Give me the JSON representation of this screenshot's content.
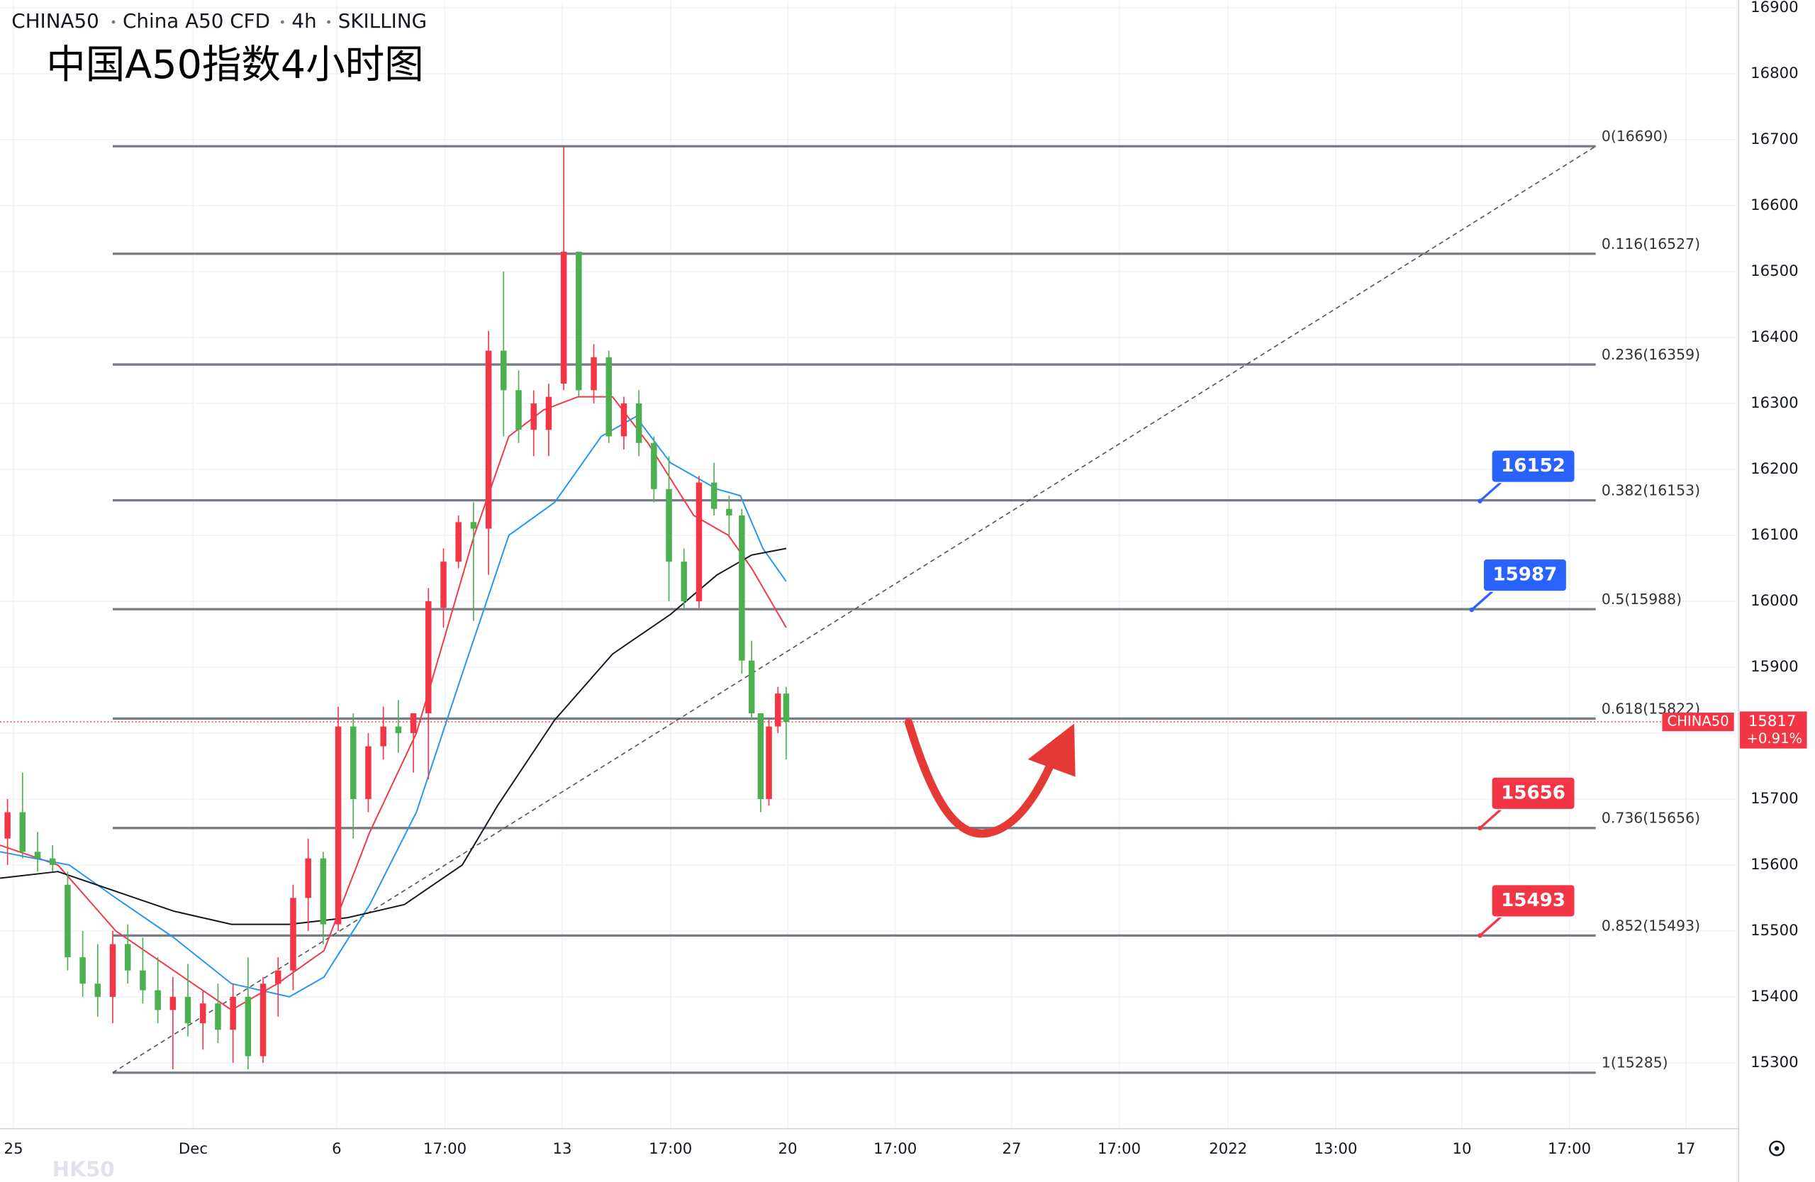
{
  "chart_data": {
    "type": "candlestick",
    "header": {
      "symbol": "CHINA50",
      "name": "China A50 CFD",
      "interval": "4h",
      "broker": "SKILLING"
    },
    "title": "中国A50指数4小时图",
    "watermark": "HK50",
    "up_color": "#f23645",
    "down_color": "#4caf50",
    "xlim": [
      0,
      231
    ],
    "xticks": [
      {
        "value": 1.8,
        "label": "25"
      },
      {
        "value": 25.7,
        "label": "Dec"
      },
      {
        "value": 44.8,
        "label": "6"
      },
      {
        "value": 59.2,
        "label": "17:00"
      },
      {
        "value": 74.8,
        "label": "13"
      },
      {
        "value": 89.2,
        "label": "17:00"
      },
      {
        "value": 104.8,
        "label": "20"
      },
      {
        "value": 119.1,
        "label": "17:00"
      },
      {
        "value": 134.6,
        "label": "27"
      },
      {
        "value": 148.9,
        "label": "17:00"
      },
      {
        "value": 163.4,
        "label": "2022"
      },
      {
        "value": 177.7,
        "label": "13:00"
      },
      {
        "value": 194.5,
        "label": "10"
      },
      {
        "value": 208.8,
        "label": "17:00"
      },
      {
        "value": 224.3,
        "label": "17"
      }
    ],
    "ylim": [
      15200,
      16910
    ],
    "yticks": [
      15300,
      15400,
      15500,
      15600,
      15700,
      15800,
      15900,
      16000,
      16100,
      16200,
      16300,
      16400,
      16500,
      16600,
      16700,
      16800,
      16900
    ],
    "grid": true,
    "candles": {
      "x": [
        1,
        3,
        5,
        7,
        9,
        11,
        13,
        15,
        17,
        19,
        21,
        23,
        25,
        27,
        29,
        31,
        33,
        35,
        37,
        39,
        41,
        43,
        45,
        47,
        49,
        51,
        53,
        55,
        57,
        59,
        61,
        63,
        65,
        67,
        69,
        71,
        73,
        75,
        77,
        79,
        81,
        83,
        85,
        87,
        89,
        91,
        93,
        95,
        97,
        98.7,
        100,
        101.2,
        102.3,
        103.5,
        104.6
      ],
      "open": [
        15640,
        15680,
        15620,
        15610,
        15570,
        15460,
        15420,
        15400,
        15480,
        15440,
        15410,
        15380,
        15400,
        15360,
        15390,
        15350,
        15400,
        15310,
        15420,
        15440,
        15550,
        15610,
        15510,
        15810,
        15700,
        15780,
        15810,
        15800,
        15830,
        15990,
        16060,
        16120,
        16110,
        16380,
        16320,
        16260,
        16260,
        16330,
        16530,
        16320,
        16370,
        16250,
        16300,
        16240,
        16170,
        16060,
        16000,
        16180,
        16140,
        16130,
        15910,
        15830,
        15700,
        15810,
        15860
      ],
      "high": [
        15700,
        15740,
        15650,
        15630,
        15590,
        15500,
        15480,
        15500,
        15510,
        15490,
        15460,
        15430,
        15450,
        15410,
        15420,
        15420,
        15460,
        15430,
        15460,
        15570,
        15640,
        15620,
        15840,
        15830,
        15800,
        15840,
        15850,
        15830,
        16020,
        16080,
        16130,
        16150,
        16410,
        16500,
        16350,
        16320,
        16330,
        16690,
        16530,
        16390,
        16380,
        16310,
        16320,
        16250,
        16220,
        16080,
        16190,
        16210,
        16160,
        16140,
        15940,
        15830,
        15820,
        15870,
        15870
      ],
      "low": [
        15600,
        15610,
        15590,
        15590,
        15440,
        15400,
        15370,
        15360,
        15420,
        15390,
        15360,
        15290,
        15340,
        15320,
        15330,
        15300,
        15290,
        15300,
        15370,
        15410,
        15500,
        15480,
        15500,
        15640,
        15680,
        15760,
        15770,
        15740,
        15730,
        15960,
        16050,
        15970,
        16040,
        16250,
        16240,
        16220,
        16220,
        16320,
        16310,
        16300,
        16240,
        16230,
        16220,
        16150,
        16000,
        15990,
        15990,
        16130,
        16100,
        15890,
        15820,
        15680,
        15690,
        15800,
        15760
      ],
      "close": [
        15680,
        15620,
        15610,
        15600,
        15460,
        15420,
        15400,
        15480,
        15440,
        15410,
        15380,
        15400,
        15360,
        15390,
        15350,
        15400,
        15310,
        15420,
        15440,
        15550,
        15610,
        15510,
        15810,
        15700,
        15780,
        15810,
        15800,
        15830,
        16000,
        16060,
        16120,
        16110,
        16380,
        16320,
        16260,
        16300,
        16310,
        16530,
        16320,
        16370,
        16250,
        16300,
        16240,
        16170,
        16060,
        16000,
        16180,
        16140,
        16130,
        15910,
        15830,
        15700,
        15810,
        15860,
        15817
      ]
    },
    "moving_averages": [
      {
        "color": "#f23645",
        "x": [
          0,
          7.7,
          15.4,
          23.1,
          30.8,
          36.9,
          43.1,
          49.2,
          55.4,
          58.5,
          63.1,
          67.7,
          72.3,
          76.9,
          81.5,
          86.2,
          92.3,
          96.9,
          100,
          104.6
        ],
        "values": [
          15630,
          15600,
          15500,
          15440,
          15380,
          15420,
          15470,
          15650,
          15800,
          15920,
          16100,
          16250,
          16290,
          16310,
          16310,
          16240,
          16130,
          16100,
          16050,
          15960
        ]
      },
      {
        "color": "#2196f3",
        "x": [
          0,
          9.2,
          15.4,
          23.1,
          30.8,
          38.5,
          43.1,
          49.2,
          55.4,
          61.5,
          67.7,
          73.8,
          80,
          84.6,
          89.2,
          95.4,
          98.5,
          101.5,
          104.6
        ],
        "values": [
          15620,
          15600,
          15550,
          15490,
          15420,
          15400,
          15430,
          15540,
          15680,
          15890,
          16100,
          16150,
          16250,
          16280,
          16210,
          16170,
          16160,
          16080,
          16030
        ]
      },
      {
        "color": "#131722",
        "x": [
          0,
          7.7,
          15.4,
          23.1,
          30.8,
          38.5,
          46.2,
          53.8,
          61.5,
          66.2,
          73.8,
          81.5,
          89.2,
          95.4,
          100,
          104.6
        ],
        "values": [
          15580,
          15590,
          15560,
          15530,
          15510,
          15510,
          15520,
          15540,
          15600,
          15690,
          15820,
          15920,
          15980,
          16040,
          16070,
          16080
        ]
      }
    ],
    "fib": {
      "x": [
        15,
        212.3
      ],
      "color": "#787b86",
      "levels": [
        {
          "value": 16690,
          "label": "0(16690)"
        },
        {
          "value": 16527,
          "label": "0.116(16527)"
        },
        {
          "value": 16359,
          "label": "0.236(16359)"
        },
        {
          "value": 16153,
          "label": "0.382(16153)"
        },
        {
          "value": 15988,
          "label": "0.5(15988)"
        },
        {
          "value": 15822,
          "label": "0.618(15822)"
        },
        {
          "value": 15656,
          "label": "0.736(15656)"
        },
        {
          "value": 15493,
          "label": "0.852(15493)"
        },
        {
          "value": 15285,
          "label": "1(15285)"
        }
      ]
    },
    "trend_line": {
      "x": [
        15,
        212.3
      ],
      "values": [
        15285,
        16690
      ]
    },
    "price_tags": [
      {
        "x": 196.9,
        "value": 16152,
        "color": "#2962ff"
      },
      {
        "x": 195.8,
        "value": 15987,
        "color": "#2962ff"
      },
      {
        "x": 196.9,
        "value": 15656,
        "color": "#f23645"
      },
      {
        "x": 196.9,
        "value": 15493,
        "color": "#f23645"
      }
    ],
    "last_price": {
      "label": "CHINA50",
      "value": 15817,
      "change": "+0.91%",
      "color": "#f23645"
    }
  }
}
